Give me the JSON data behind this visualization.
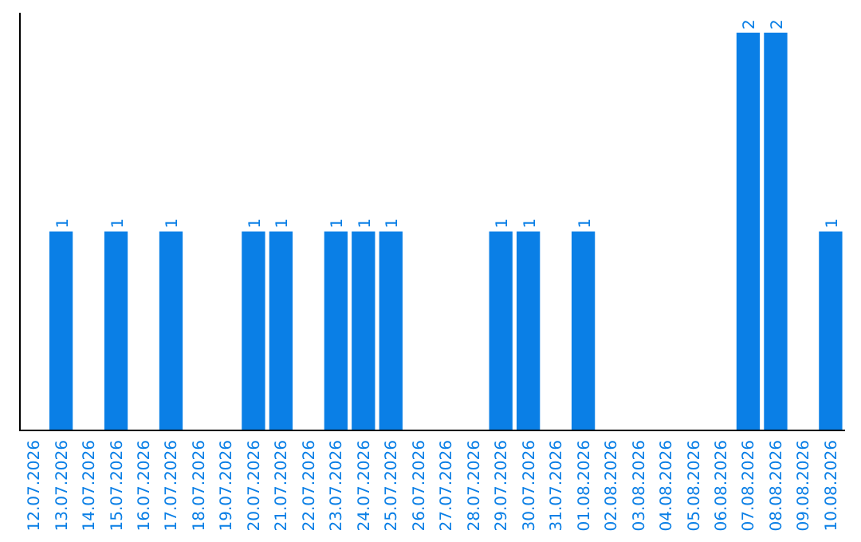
{
  "chart_data": {
    "type": "bar",
    "categories": [
      "12.07.2026",
      "13.07.2026",
      "14.07.2026",
      "15.07.2026",
      "16.07.2026",
      "17.07.2026",
      "18.07.2026",
      "19.07.2026",
      "20.07.2026",
      "21.07.2026",
      "22.07.2026",
      "23.07.2026",
      "24.07.2026",
      "25.07.2026",
      "26.07.2026",
      "27.07.2026",
      "28.07.2026",
      "29.07.2026",
      "30.07.2026",
      "31.07.2026",
      "01.08.2026",
      "02.08.2026",
      "03.08.2026",
      "04.08.2026",
      "05.08.2026",
      "06.08.2026",
      "07.08.2026",
      "08.08.2026",
      "09.08.2026",
      "10.08.2026"
    ],
    "values": [
      0,
      1,
      0,
      1,
      0,
      1,
      0,
      0,
      1,
      1,
      0,
      1,
      1,
      1,
      0,
      0,
      0,
      1,
      1,
      0,
      1,
      0,
      0,
      0,
      0,
      0,
      2,
      2,
      0,
      1
    ],
    "value_labels": [
      null,
      "1",
      null,
      "1",
      null,
      "1",
      null,
      null,
      "1",
      "1",
      null,
      "1",
      "1",
      "1",
      null,
      null,
      null,
      "1",
      "1",
      null,
      "1",
      null,
      null,
      null,
      null,
      null,
      "2",
      "2",
      null,
      "1"
    ],
    "color": "#0a7fe6",
    "tick_labels": "x",
    "grid": false
  }
}
